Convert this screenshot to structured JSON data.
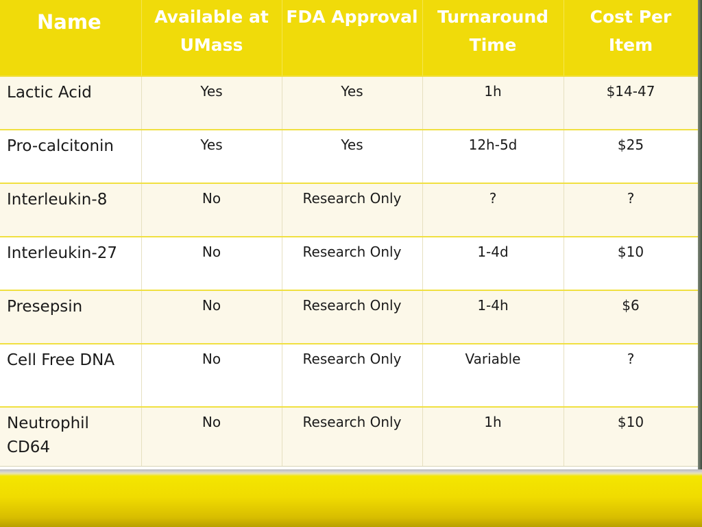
{
  "table": {
    "headers": [
      "Name",
      "Available at UMass",
      "FDA Approval",
      "Turnaround Time",
      "Cost Per Item"
    ],
    "rows": [
      [
        "Lactic Acid",
        "Yes",
        "Yes",
        "1h",
        "$14-47"
      ],
      [
        "Pro-calcitonin",
        "Yes",
        "Yes",
        "12h-5d",
        "$25"
      ],
      [
        "Interleukin-8",
        "No",
        "Research Only",
        "?",
        "?"
      ],
      [
        "Interleukin-27",
        "No",
        "Research Only",
        "1-4d",
        "$10"
      ],
      [
        "Presepsin",
        "No",
        "Research Only",
        "1-4h",
        "$6"
      ],
      [
        "Cell Free DNA",
        "No",
        "Research Only",
        "Variable",
        "?"
      ],
      [
        "Neutrophil CD64",
        "No",
        "Research Only",
        "1h",
        "$10"
      ]
    ]
  },
  "colors": {
    "header_background": "#f0db0a",
    "header_text": "#ffffff",
    "row_tint": "#fcf8e9",
    "row_plain": "#ffffff",
    "footer_band": "#f0dc00"
  }
}
